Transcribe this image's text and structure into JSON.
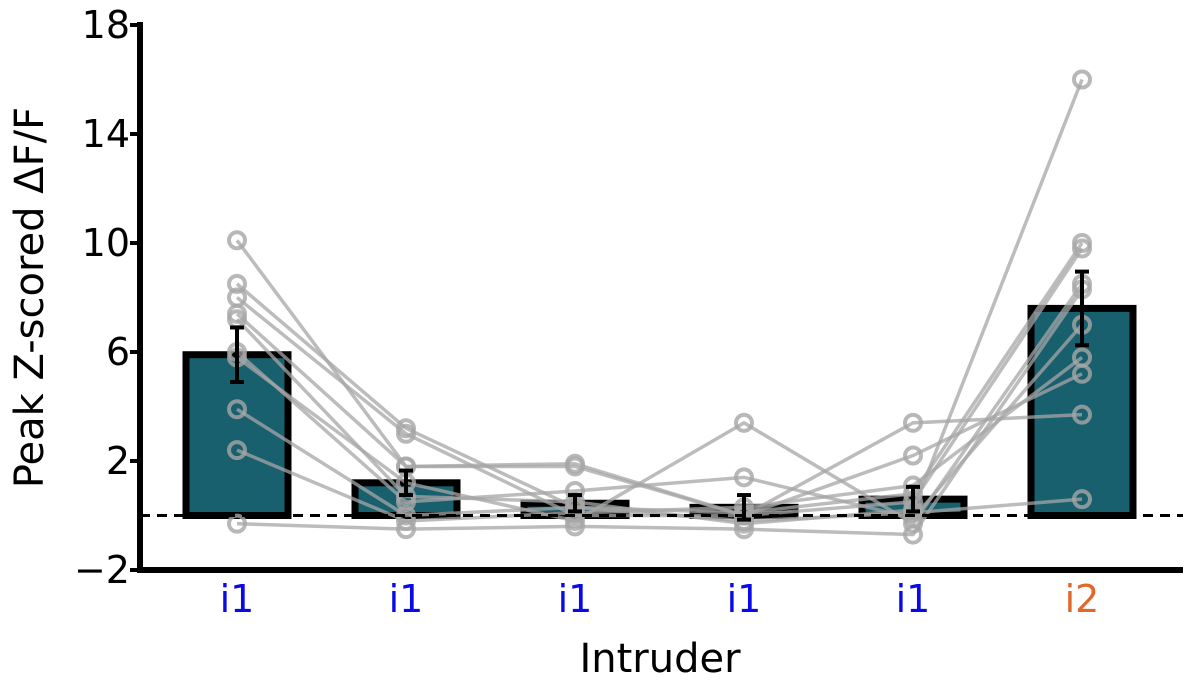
{
  "chart_data": {
    "type": "bar",
    "ylabel": "Peak Z-scored ΔF/F",
    "xlabel": "Intruder",
    "ylim": [
      -2,
      18
    ],
    "yticks": [
      -2,
      2,
      6,
      10,
      14,
      18
    ],
    "ytick_labels": [
      "−2",
      "2",
      "6",
      "10",
      "14",
      "18"
    ],
    "categories": [
      "i1",
      "i1",
      "i1",
      "i1",
      "i1",
      "i2"
    ],
    "category_colors": [
      "#0a0ae8",
      "#0a0ae8",
      "#0a0ae8",
      "#0a0ae8",
      "#0a0ae8",
      "#e0682a"
    ],
    "bar_color": "#19606e",
    "bar_edge_color": "#000000",
    "values": [
      5.9,
      1.2,
      0.45,
      0.3,
      0.6,
      7.6
    ],
    "errors": [
      1.0,
      0.45,
      0.3,
      0.45,
      0.45,
      1.35
    ],
    "baseline": 0,
    "line_color": "#a6a6a6",
    "subjects": [
      [
        10.1,
        1.8,
        1.8,
        0.0,
        3.4,
        3.7
      ],
      [
        8.5,
        3.2,
        0.3,
        -0.2,
        0.1,
        0.6
      ],
      [
        8.0,
        3.0,
        0.0,
        0.0,
        2.2,
        5.2
      ],
      [
        7.4,
        1.8,
        1.9,
        0.0,
        0.5,
        9.8
      ],
      [
        7.2,
        0.7,
        0.5,
        -0.3,
        0.2,
        16.0
      ],
      [
        6.0,
        0.5,
        0.9,
        1.4,
        -0.1,
        7.0
      ],
      [
        5.8,
        1.2,
        -0.2,
        3.4,
        -0.3,
        8.5
      ],
      [
        3.9,
        0.0,
        0.3,
        0.1,
        0.8,
        10.0
      ],
      [
        2.4,
        -0.2,
        0.1,
        0.3,
        1.1,
        5.8
      ],
      [
        -0.3,
        -0.5,
        -0.4,
        -0.5,
        -0.7,
        8.3
      ]
    ]
  }
}
